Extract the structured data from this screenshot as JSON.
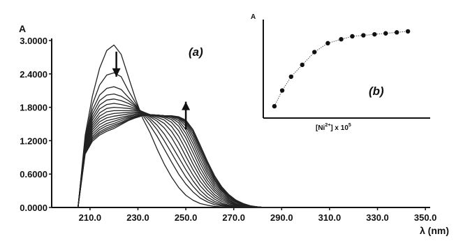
{
  "chart_data": [
    {
      "type": "line",
      "panel_label": "(a)",
      "ylabel": "A",
      "xlabel": "λ (nm)",
      "xlim": [
        194,
        352
      ],
      "ylim": [
        0,
        3.0
      ],
      "x_ticks": [
        "210.0",
        "230.0",
        "250.0",
        "270.0",
        "290.0",
        "310.0",
        "330.0",
        "350.0"
      ],
      "y_ticks": [
        "0.0000",
        "0.6000",
        "1.2000",
        "1.8000",
        "2.4000",
        "3.0000"
      ],
      "x": [
        205,
        208,
        211,
        214,
        217,
        220,
        223,
        226,
        229,
        232,
        235,
        238,
        241,
        244,
        247,
        250,
        253,
        256,
        259,
        262,
        265,
        268,
        271,
        274,
        277,
        280,
        283,
        286,
        290
      ],
      "series": [
        {
          "values": [
            0.0,
            1.3,
            2.0,
            2.5,
            2.82,
            2.92,
            2.75,
            2.35,
            1.95,
            1.6,
            1.35,
            1.05,
            0.78,
            0.55,
            0.36,
            0.22,
            0.13,
            0.07,
            0.04,
            0.02,
            0.01,
            0.0,
            0.0,
            0.0,
            0.0,
            0.0,
            0.0,
            0.0,
            0.0
          ]
        },
        {
          "values": [
            0.0,
            1.25,
            1.85,
            2.2,
            2.38,
            2.42,
            2.35,
            2.1,
            1.88,
            1.66,
            1.48,
            1.28,
            1.05,
            0.82,
            0.6,
            0.42,
            0.28,
            0.17,
            0.1,
            0.05,
            0.03,
            0.01,
            0.0,
            0.0,
            0.0,
            0.0,
            0.0,
            0.0,
            0.0
          ]
        },
        {
          "values": [
            0.0,
            1.22,
            1.75,
            2.02,
            2.14,
            2.17,
            2.12,
            1.98,
            1.84,
            1.68,
            1.56,
            1.4,
            1.2,
            0.98,
            0.76,
            0.55,
            0.38,
            0.24,
            0.14,
            0.08,
            0.04,
            0.02,
            0.01,
            0.0,
            0.0,
            0.0,
            0.0,
            0.0,
            0.0
          ]
        },
        {
          "values": [
            0.0,
            1.2,
            1.68,
            1.92,
            2.02,
            2.04,
            2.0,
            1.92,
            1.82,
            1.7,
            1.6,
            1.48,
            1.32,
            1.12,
            0.9,
            0.68,
            0.48,
            0.31,
            0.19,
            0.11,
            0.06,
            0.03,
            0.01,
            0.0,
            0.0,
            0.0,
            0.0,
            0.0,
            0.0
          ]
        },
        {
          "values": [
            0.0,
            1.18,
            1.62,
            1.84,
            1.93,
            1.95,
            1.92,
            1.87,
            1.8,
            1.71,
            1.63,
            1.55,
            1.43,
            1.26,
            1.04,
            0.8,
            0.58,
            0.39,
            0.25,
            0.15,
            0.08,
            0.04,
            0.02,
            0.01,
            0.0,
            0.0,
            0.0,
            0.0,
            0.0
          ]
        },
        {
          "values": [
            0.0,
            1.16,
            1.57,
            1.77,
            1.85,
            1.87,
            1.85,
            1.82,
            1.78,
            1.72,
            1.65,
            1.59,
            1.51,
            1.37,
            1.17,
            0.92,
            0.68,
            0.47,
            0.31,
            0.19,
            0.11,
            0.06,
            0.03,
            0.01,
            0.0,
            0.0,
            0.0,
            0.0,
            0.0
          ]
        },
        {
          "values": [
            0.0,
            1.14,
            1.52,
            1.7,
            1.78,
            1.8,
            1.79,
            1.78,
            1.76,
            1.72,
            1.66,
            1.62,
            1.57,
            1.46,
            1.28,
            1.04,
            0.78,
            0.55,
            0.37,
            0.23,
            0.14,
            0.08,
            0.04,
            0.02,
            0.01,
            0.0,
            0.0,
            0.0,
            0.0
          ]
        },
        {
          "values": [
            0.0,
            1.12,
            1.48,
            1.64,
            1.72,
            1.74,
            1.74,
            1.74,
            1.74,
            1.72,
            1.67,
            1.64,
            1.61,
            1.53,
            1.38,
            1.15,
            0.88,
            0.63,
            0.43,
            0.28,
            0.17,
            0.1,
            0.05,
            0.02,
            0.01,
            0.0,
            0.0,
            0.0,
            0.0
          ]
        },
        {
          "values": [
            0.0,
            1.1,
            1.44,
            1.59,
            1.66,
            1.69,
            1.7,
            1.71,
            1.72,
            1.71,
            1.67,
            1.65,
            1.63,
            1.58,
            1.46,
            1.25,
            0.98,
            0.71,
            0.49,
            0.32,
            0.2,
            0.12,
            0.06,
            0.03,
            0.01,
            0.0,
            0.0,
            0.0,
            0.0
          ]
        },
        {
          "values": [
            0.0,
            1.08,
            1.4,
            1.54,
            1.61,
            1.64,
            1.66,
            1.68,
            1.7,
            1.7,
            1.67,
            1.66,
            1.64,
            1.61,
            1.52,
            1.33,
            1.07,
            0.79,
            0.55,
            0.36,
            0.23,
            0.14,
            0.07,
            0.03,
            0.01,
            0.0,
            0.0,
            0.0,
            0.0
          ]
        },
        {
          "values": [
            0.0,
            1.06,
            1.36,
            1.49,
            1.56,
            1.59,
            1.62,
            1.65,
            1.68,
            1.69,
            1.67,
            1.66,
            1.65,
            1.63,
            1.56,
            1.4,
            1.15,
            0.86,
            0.61,
            0.4,
            0.26,
            0.16,
            0.09,
            0.04,
            0.02,
            0.01,
            0.0,
            0.0,
            0.0
          ]
        },
        {
          "values": [
            0.0,
            1.04,
            1.32,
            1.44,
            1.51,
            1.55,
            1.59,
            1.63,
            1.66,
            1.68,
            1.67,
            1.66,
            1.65,
            1.64,
            1.59,
            1.46,
            1.22,
            0.93,
            0.66,
            0.44,
            0.29,
            0.18,
            0.1,
            0.05,
            0.02,
            0.01,
            0.0,
            0.0,
            0.0
          ]
        },
        {
          "values": [
            0.0,
            1.02,
            1.28,
            1.4,
            1.47,
            1.51,
            1.56,
            1.61,
            1.64,
            1.67,
            1.66,
            1.66,
            1.65,
            1.64,
            1.61,
            1.5,
            1.28,
            0.99,
            0.71,
            0.48,
            0.31,
            0.2,
            0.11,
            0.05,
            0.02,
            0.01,
            0.0,
            0.0,
            0.0
          ]
        },
        {
          "values": [
            0.0,
            1.0,
            1.25,
            1.36,
            1.43,
            1.48,
            1.53,
            1.59,
            1.63,
            1.66,
            1.66,
            1.66,
            1.65,
            1.64,
            1.62,
            1.53,
            1.33,
            1.04,
            0.76,
            0.51,
            0.33,
            0.21,
            0.12,
            0.06,
            0.02,
            0.01,
            0.0,
            0.0,
            0.0
          ]
        },
        {
          "values": [
            0.0,
            0.98,
            1.22,
            1.33,
            1.4,
            1.45,
            1.51,
            1.57,
            1.62,
            1.66,
            1.66,
            1.66,
            1.65,
            1.64,
            1.62,
            1.55,
            1.37,
            1.08,
            0.8,
            0.54,
            0.35,
            0.22,
            0.13,
            0.06,
            0.03,
            0.01,
            0.0,
            0.0,
            0.0
          ]
        },
        {
          "values": [
            0.0,
            0.96,
            1.19,
            1.3,
            1.37,
            1.42,
            1.49,
            1.56,
            1.61,
            1.65,
            1.66,
            1.66,
            1.65,
            1.65,
            1.63,
            1.57,
            1.4,
            1.12,
            0.83,
            0.57,
            0.37,
            0.23,
            0.13,
            0.07,
            0.03,
            0.01,
            0.0,
            0.0,
            0.0
          ]
        }
      ],
      "annotations": [
        {
          "type": "arrow",
          "direction": "down",
          "x": 221,
          "from_y": 2.8,
          "to_y": 2.35
        },
        {
          "type": "arrow",
          "direction": "up",
          "x": 250,
          "from_y": 1.4,
          "to_y": 1.9
        }
      ]
    },
    {
      "type": "scatter",
      "panel_label": "(b)",
      "ylabel": "A",
      "xlabel_parts": {
        "pre": "[Ni",
        "sup": "2+",
        "post": "] x 10",
        "sup2": "5"
      },
      "xlim": [
        0,
        15
      ],
      "ylim": [
        0,
        1.0
      ],
      "x": [
        1,
        1.7,
        2.5,
        3.5,
        4.6,
        5.8,
        7.0,
        8.0,
        9.0,
        10.0,
        11.0,
        12.0,
        13.0
      ],
      "y": [
        0.12,
        0.28,
        0.42,
        0.54,
        0.67,
        0.76,
        0.8,
        0.83,
        0.84,
        0.85,
        0.86,
        0.87,
        0.88
      ],
      "fit_line": true
    }
  ]
}
